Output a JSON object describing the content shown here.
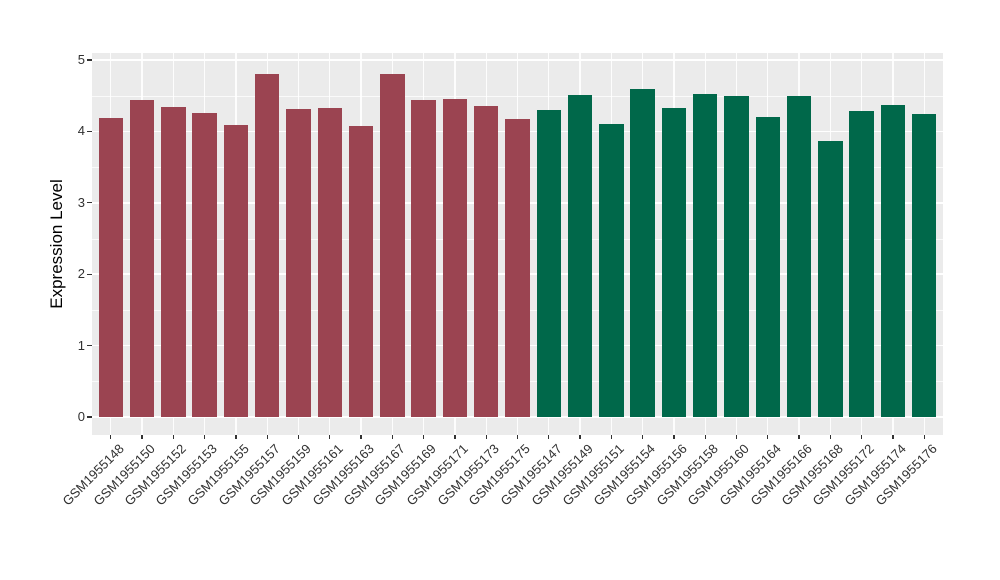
{
  "style": {
    "panel_bg": "#EBEBEB",
    "gridline": "#FFFFFF",
    "tick_color": "#333333",
    "tick_text_color": "#303030",
    "axis_title_color": "#000000",
    "group1_color": "#9B4451",
    "group2_color": "#00684A"
  },
  "chart_data": {
    "type": "bar",
    "title": "",
    "xlabel": "",
    "ylabel": "Expression Level",
    "ylim": [
      0,
      5
    ],
    "yticks": [
      0,
      1,
      2,
      3,
      4,
      5
    ],
    "minor_gridlines": [
      0.5,
      1.5,
      2.5,
      3.5,
      4.5
    ],
    "grid": "on",
    "legend_position": "none",
    "series": [
      {
        "name": "left-group-maroon",
        "color": "#9B4451",
        "bars": [
          {
            "label": "GSM1955148",
            "value": 4.19
          },
          {
            "label": "GSM1955150",
            "value": 4.44
          },
          {
            "label": "GSM1955152",
            "value": 4.34
          },
          {
            "label": "GSM1955153",
            "value": 4.26
          },
          {
            "label": "GSM1955155",
            "value": 4.09
          },
          {
            "label": "GSM1955157",
            "value": 4.8
          },
          {
            "label": "GSM1955159",
            "value": 4.32
          },
          {
            "label": "GSM1955161",
            "value": 4.33
          },
          {
            "label": "GSM1955163",
            "value": 4.08
          },
          {
            "label": "GSM1955167",
            "value": 4.8
          },
          {
            "label": "GSM1955169",
            "value": 4.44
          },
          {
            "label": "GSM1955171",
            "value": 4.45
          },
          {
            "label": "GSM1955173",
            "value": 4.36
          },
          {
            "label": "GSM1955175",
            "value": 4.18
          }
        ]
      },
      {
        "name": "right-group-green",
        "color": "#00684A",
        "bars": [
          {
            "label": "GSM1955147",
            "value": 4.3
          },
          {
            "label": "GSM1955149",
            "value": 4.51
          },
          {
            "label": "GSM1955151",
            "value": 4.11
          },
          {
            "label": "GSM1955154",
            "value": 4.59
          },
          {
            "label": "GSM1955156",
            "value": 4.33
          },
          {
            "label": "GSM1955158",
            "value": 4.53
          },
          {
            "label": "GSM1955160",
            "value": 4.49
          },
          {
            "label": "GSM1955164",
            "value": 4.2
          },
          {
            "label": "GSM1955166",
            "value": 4.5
          },
          {
            "label": "GSM1955168",
            "value": 3.86
          },
          {
            "label": "GSM1955172",
            "value": 4.28
          },
          {
            "label": "GSM1955174",
            "value": 4.37
          },
          {
            "label": "GSM1955176",
            "value": 4.24
          }
        ]
      }
    ]
  }
}
